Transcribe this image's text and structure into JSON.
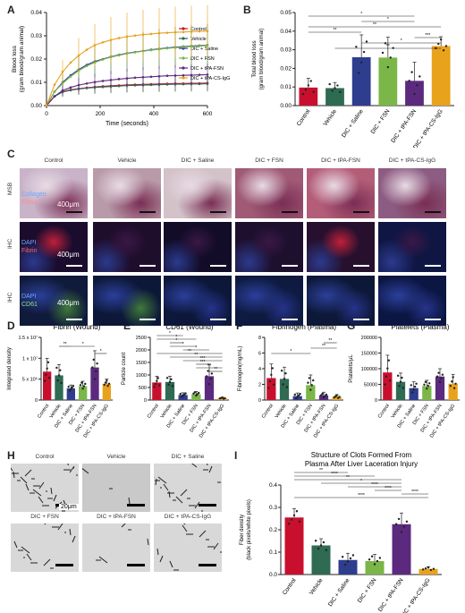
{
  "panels": [
    "A",
    "B",
    "C",
    "D",
    "E",
    "F",
    "G",
    "H",
    "I"
  ],
  "groups": [
    "Control",
    "Vehicle",
    "DIC + Saline",
    "DIC + FSN",
    "DIC + tPA-FSN",
    "DIC + tPA-CS-IgG"
  ],
  "colors": {
    "Control": "#c8102e",
    "Vehicle": "#2e6b52",
    "DIC + Saline": "#2f3d8f",
    "DIC + FSN": "#7ab648",
    "DIC + tPA-FSN": "#5b2a7e",
    "DIC + tPA-CS-IgG": "#e8a21c"
  },
  "panel_c": {
    "row_labels": [
      "MSB",
      "IHC",
      "IHC"
    ],
    "stain_labels": [
      [
        "Collagen",
        "Fibrin"
      ],
      [
        "DAPI",
        "Fibrin"
      ],
      [
        "DAPI",
        "CD61"
      ]
    ],
    "scale_label": "400μm"
  },
  "panel_h": {
    "labels": [
      "Control",
      "Vehicle",
      "DIC + Saline",
      "DIC + FSN",
      "DIC + tPA-FSN",
      "DIC + tPA-CS-IgG"
    ],
    "scale_label": "20μm"
  },
  "chart_data": [
    {
      "panel": "A",
      "type": "line",
      "xlabel": "Time (seconds)",
      "ylabel": "Blood loss (gram blood/gram animal)",
      "xlim": [
        0,
        600
      ],
      "ylim": [
        0,
        0.04
      ],
      "x_ticks": [
        "0",
        "200",
        "400",
        "600"
      ],
      "y_ticks": [
        "0.00",
        "0.01",
        "0.02",
        "0.03",
        "0.04"
      ],
      "legend_position": "top-right",
      "x": [
        0,
        30,
        60,
        90,
        120,
        150,
        180,
        210,
        240,
        270,
        300,
        330,
        360,
        390,
        420,
        450,
        480,
        510,
        540,
        570,
        600
      ],
      "series": [
        {
          "name": "Control",
          "values": [
            0,
            0.004,
            0.006,
            0.0068,
            0.0073,
            0.0077,
            0.008,
            0.0083,
            0.0085,
            0.0087,
            0.0089,
            0.009,
            0.0091,
            0.0092,
            0.0093,
            0.0094,
            0.0095,
            0.0095,
            0.0096,
            0.0096,
            0.0097
          ]
        },
        {
          "name": "Vehicle",
          "values": [
            0,
            0.004,
            0.0058,
            0.0066,
            0.0071,
            0.0075,
            0.0078,
            0.008,
            0.0082,
            0.0084,
            0.0086,
            0.0087,
            0.0088,
            0.0089,
            0.009,
            0.0091,
            0.0092,
            0.0092,
            0.0093,
            0.0093,
            0.0094
          ]
        },
        {
          "name": "DIC + Saline",
          "values": [
            0,
            0.006,
            0.01,
            0.013,
            0.0155,
            0.0175,
            0.019,
            0.02,
            0.021,
            0.0218,
            0.0225,
            0.023,
            0.0235,
            0.024,
            0.0244,
            0.0248,
            0.0251,
            0.0254,
            0.0256,
            0.0258,
            0.026
          ]
        },
        {
          "name": "DIC + FSN",
          "values": [
            0,
            0.006,
            0.0095,
            0.0125,
            0.015,
            0.017,
            0.0185,
            0.0198,
            0.0208,
            0.0216,
            0.0223,
            0.0229,
            0.0234,
            0.0238,
            0.0242,
            0.0246,
            0.0249,
            0.0252,
            0.0254,
            0.0256,
            0.0258
          ]
        },
        {
          "name": "DIC + tPA-FSN",
          "values": [
            0,
            0.004,
            0.0065,
            0.0078,
            0.0088,
            0.0095,
            0.0101,
            0.0106,
            0.011,
            0.0114,
            0.0117,
            0.012,
            0.0122,
            0.0124,
            0.0126,
            0.0128,
            0.0129,
            0.013,
            0.0131,
            0.0132,
            0.0133
          ]
        },
        {
          "name": "DIC + tPA-CS-IgG",
          "values": [
            0,
            0.009,
            0.0145,
            0.0185,
            0.0215,
            0.024,
            0.026,
            0.0272,
            0.0282,
            0.029,
            0.0296,
            0.0301,
            0.0305,
            0.0308,
            0.0311,
            0.0313,
            0.0315,
            0.0316,
            0.0318,
            0.0319,
            0.032
          ]
        }
      ]
    },
    {
      "panel": "B",
      "type": "bar",
      "ylabel": "Total blood loss (gram blood/gram animal)",
      "ylim": [
        0,
        0.05
      ],
      "y_ticks": [
        "0.00",
        "0.01",
        "0.02",
        "0.03",
        "0.04",
        "0.05"
      ],
      "categories": [
        "Control",
        "Vehicle",
        "DIC + Saline",
        "DIC + FSN",
        "DIC + tPA-FSN",
        "DIC + tPA-CS-IgG"
      ],
      "values": [
        0.0097,
        0.0094,
        0.026,
        0.0258,
        0.0133,
        0.032
      ],
      "errors": [
        0.005,
        0.003,
        0.012,
        0.011,
        0.01,
        0.005
      ],
      "significance": [
        "*",
        "*",
        "**",
        "**",
        "***",
        "*",
        "**"
      ]
    },
    {
      "panel": "D",
      "type": "bar",
      "title": "Fibrin (Wound)",
      "ylabel": "Integrated density",
      "ylim": [
        0,
        15000000
      ],
      "y_ticks": [
        "0",
        "5 x 10⁶",
        "1 x 10⁷",
        "1.5 x 10⁷"
      ],
      "categories": [
        "Control",
        "Vehicle",
        "DIC + Saline",
        "DIC + FSN",
        "DIC + tPA-FSN",
        "DIC + tPA-CS-IgG"
      ],
      "values": [
        6800000,
        5900000,
        2800000,
        3300000,
        7800000,
        3900000
      ],
      "errors": [
        3200000,
        2600000,
        800000,
        1200000,
        4000000,
        1100000
      ],
      "significance": [
        "**",
        "*",
        "*"
      ]
    },
    {
      "panel": "E",
      "type": "bar",
      "title": "CD61 (Wound)",
      "ylabel": "Particle count",
      "ylim": [
        0,
        2500
      ],
      "y_ticks": [
        "0",
        "500",
        "1000",
        "1500",
        "2000",
        "2500"
      ],
      "categories": [
        "Control",
        "Vehicle",
        "DIC + Saline",
        "DIC + FSN",
        "DIC + tPA-FSN",
        "DIC + tPA-CS-IgG"
      ],
      "values": [
        700,
        720,
        200,
        230,
        950,
        70
      ],
      "errors": [
        250,
        230,
        90,
        110,
        450,
        40
      ],
      "significance": [
        "*",
        "*",
        "*",
        "*",
        "*",
        "**",
        "**",
        "***",
        "***",
        "**",
        "**"
      ]
    },
    {
      "panel": "F",
      "type": "bar",
      "title": "Fibrinogen (Plasma)",
      "ylabel": "Fibrinogen(mg/mL)",
      "ylim": [
        0,
        8
      ],
      "y_ticks": [
        "0",
        "2",
        "4",
        "6",
        "8"
      ],
      "categories": [
        "Control",
        "Vehicle",
        "DIC + Saline",
        "DIC + FSN",
        "DIC + tPA-FSN",
        "DIC + tPA-CS-IgG"
      ],
      "values": [
        2.8,
        2.7,
        0.5,
        1.9,
        0.6,
        0.4
      ],
      "errors": [
        1.8,
        1.5,
        0.4,
        1.3,
        0.4,
        0.3
      ],
      "significance": [
        "*",
        "**",
        "**"
      ]
    },
    {
      "panel": "G",
      "type": "bar",
      "title": "Platelets (Plasma)",
      "ylabel": "Platelets/μL",
      "ylim": [
        0,
        200000
      ],
      "y_ticks": [
        "0",
        "50000",
        "100000",
        "150000",
        "200000"
      ],
      "categories": [
        "Control",
        "Vehicle",
        "DIC + Saline",
        "DIC + FSN",
        "DIC + tPA-FSN",
        "DIC + tPA-CS-IgG"
      ],
      "values": [
        88000,
        58000,
        38000,
        45000,
        75000,
        52000
      ],
      "errors": [
        55000,
        28000,
        20000,
        18000,
        25000,
        30000
      ]
    },
    {
      "panel": "I",
      "type": "bar",
      "title": "Structure of Clots Formed From Plasma After Liver Laceration Injury",
      "ylabel": "Fiber density (black pixels/white pixels)",
      "ylim": [
        0,
        0.4
      ],
      "y_ticks": [
        "0.0",
        "0.1",
        "0.2",
        "0.3",
        "0.4"
      ],
      "categories": [
        "Control",
        "Vehicle",
        "DIC + Saline",
        "DIC + FSN",
        "DIC + tPA-FSN",
        "DIC + tPA-CS-IgG"
      ],
      "values": [
        0.255,
        0.13,
        0.065,
        0.06,
        0.225,
        0.025
      ],
      "errors": [
        0.04,
        0.03,
        0.03,
        0.03,
        0.05,
        0.01
      ],
      "significance": [
        "**",
        "****",
        "**",
        "*",
        "****",
        "****",
        "****",
        "****"
      ]
    }
  ]
}
